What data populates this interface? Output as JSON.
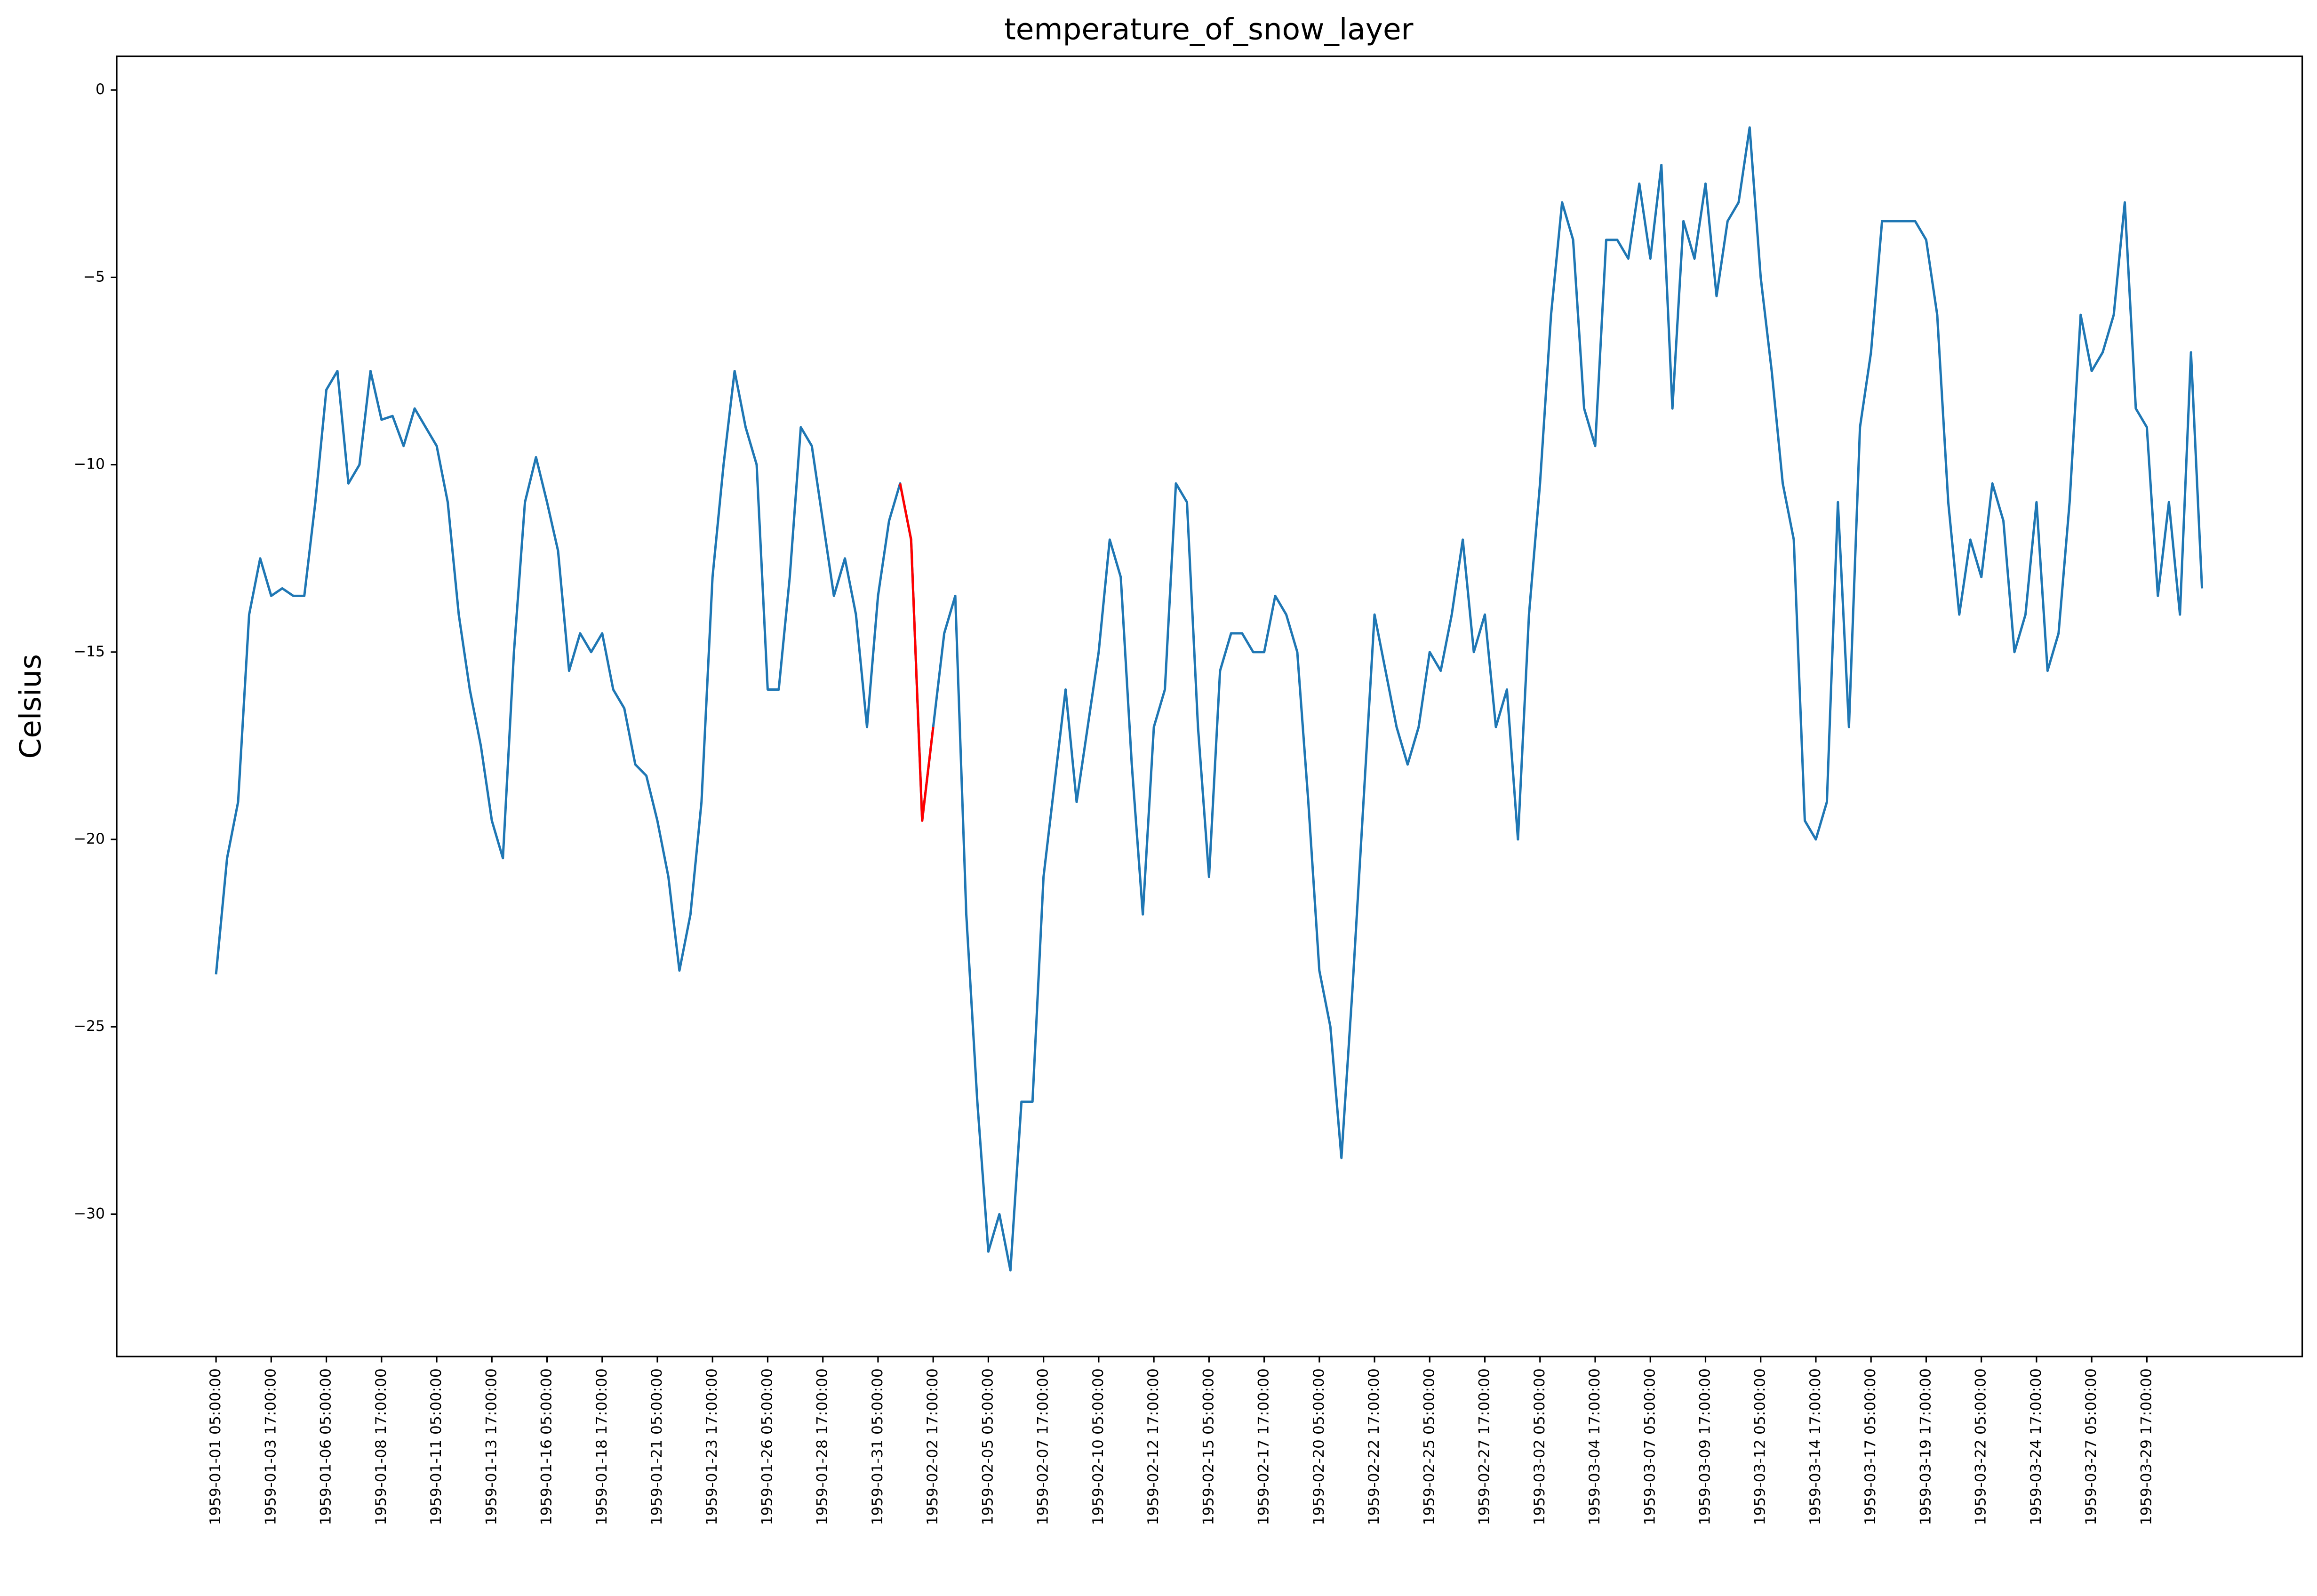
{
  "chart_data": {
    "type": "line",
    "title": "temperature_of_snow_layer",
    "y_label": "Celsius",
    "x": [
      "1959-01-01 05:00:00",
      "1959-01-01 17:00:00",
      "1959-01-02 05:00:00",
      "1959-01-02 17:00:00",
      "1959-01-03 05:00:00",
      "1959-01-03 17:00:00",
      "1959-01-04 05:00:00",
      "1959-01-04 17:00:00",
      "1959-01-05 05:00:00",
      "1959-01-05 17:00:00",
      "1959-01-06 05:00:00",
      "1959-01-06 17:00:00",
      "1959-01-07 05:00:00",
      "1959-01-07 17:00:00",
      "1959-01-08 05:00:00",
      "1959-01-08 17:00:00",
      "1959-01-09 05:00:00",
      "1959-01-09 17:00:00",
      "1959-01-10 05:00:00",
      "1959-01-10 17:00:00",
      "1959-01-11 05:00:00",
      "1959-01-11 17:00:00",
      "1959-01-12 05:00:00",
      "1959-01-12 17:00:00",
      "1959-01-13 05:00:00",
      "1959-01-13 17:00:00",
      "1959-01-14 05:00:00",
      "1959-01-14 17:00:00",
      "1959-01-15 05:00:00",
      "1959-01-15 17:00:00",
      "1959-01-16 05:00:00",
      "1959-01-16 17:00:00",
      "1959-01-17 05:00:00",
      "1959-01-17 17:00:00",
      "1959-01-18 05:00:00",
      "1959-01-18 17:00:00",
      "1959-01-19 05:00:00",
      "1959-01-19 17:00:00",
      "1959-01-20 05:00:00",
      "1959-01-20 17:00:00",
      "1959-01-21 05:00:00",
      "1959-01-21 17:00:00",
      "1959-01-22 05:00:00",
      "1959-01-22 17:00:00",
      "1959-01-23 05:00:00",
      "1959-01-23 17:00:00",
      "1959-01-24 05:00:00",
      "1959-01-24 17:00:00",
      "1959-01-25 05:00:00",
      "1959-01-25 17:00:00",
      "1959-01-26 05:00:00",
      "1959-01-26 17:00:00",
      "1959-01-27 05:00:00",
      "1959-01-27 17:00:00",
      "1959-01-28 05:00:00",
      "1959-01-28 17:00:00",
      "1959-01-29 05:00:00",
      "1959-01-29 17:00:00",
      "1959-01-30 05:00:00",
      "1959-01-30 17:00:00",
      "1959-01-31 05:00:00",
      "1959-01-31 17:00:00",
      "1959-02-01 05:00:00",
      "1959-02-01 17:00:00",
      "1959-02-02 05:00:00",
      "1959-02-02 17:00:00",
      "1959-02-03 05:00:00",
      "1959-02-03 17:00:00",
      "1959-02-04 05:00:00",
      "1959-02-04 17:00:00",
      "1959-02-05 05:00:00",
      "1959-02-05 17:00:00",
      "1959-02-06 05:00:00",
      "1959-02-06 17:00:00",
      "1959-02-07 05:00:00",
      "1959-02-07 17:00:00",
      "1959-02-08 05:00:00",
      "1959-02-08 17:00:00",
      "1959-02-09 05:00:00",
      "1959-02-09 17:00:00",
      "1959-02-10 05:00:00",
      "1959-02-10 17:00:00",
      "1959-02-11 05:00:00",
      "1959-02-11 17:00:00",
      "1959-02-12 05:00:00",
      "1959-02-12 17:00:00",
      "1959-02-13 05:00:00",
      "1959-02-13 17:00:00",
      "1959-02-14 05:00:00",
      "1959-02-14 17:00:00",
      "1959-02-15 05:00:00",
      "1959-02-15 17:00:00",
      "1959-02-16 05:00:00",
      "1959-02-16 17:00:00",
      "1959-02-17 05:00:00",
      "1959-02-17 17:00:00",
      "1959-02-18 05:00:00",
      "1959-02-18 17:00:00",
      "1959-02-19 05:00:00",
      "1959-02-19 17:00:00",
      "1959-02-20 05:00:00",
      "1959-02-20 17:00:00",
      "1959-02-21 05:00:00",
      "1959-02-21 17:00:00",
      "1959-02-22 05:00:00",
      "1959-02-22 17:00:00",
      "1959-02-23 05:00:00",
      "1959-02-23 17:00:00",
      "1959-02-24 05:00:00",
      "1959-02-24 17:00:00",
      "1959-02-25 05:00:00",
      "1959-02-25 17:00:00",
      "1959-02-26 05:00:00",
      "1959-02-26 17:00:00",
      "1959-02-27 05:00:00",
      "1959-02-27 17:00:00",
      "1959-02-28 05:00:00",
      "1959-02-28 17:00:00",
      "1959-03-01 05:00:00",
      "1959-03-01 17:00:00",
      "1959-03-02 05:00:00",
      "1959-03-02 17:00:00",
      "1959-03-03 05:00:00",
      "1959-03-03 17:00:00",
      "1959-03-04 05:00:00",
      "1959-03-04 17:00:00",
      "1959-03-05 05:00:00",
      "1959-03-05 17:00:00",
      "1959-03-06 05:00:00",
      "1959-03-06 17:00:00",
      "1959-03-07 05:00:00",
      "1959-03-07 17:00:00",
      "1959-03-08 05:00:00",
      "1959-03-08 17:00:00",
      "1959-03-09 05:00:00",
      "1959-03-09 17:00:00",
      "1959-03-10 05:00:00",
      "1959-03-10 17:00:00",
      "1959-03-11 05:00:00",
      "1959-03-11 17:00:00",
      "1959-03-12 05:00:00",
      "1959-03-12 17:00:00",
      "1959-03-13 05:00:00",
      "1959-03-13 17:00:00",
      "1959-03-14 05:00:00",
      "1959-03-14 17:00:00",
      "1959-03-15 05:00:00",
      "1959-03-15 17:00:00",
      "1959-03-16 05:00:00",
      "1959-03-16 17:00:00",
      "1959-03-17 05:00:00",
      "1959-03-17 17:00:00",
      "1959-03-18 05:00:00",
      "1959-03-18 17:00:00",
      "1959-03-19 05:00:00",
      "1959-03-19 17:00:00",
      "1959-03-20 05:00:00",
      "1959-03-20 17:00:00",
      "1959-03-21 05:00:00",
      "1959-03-21 17:00:00",
      "1959-03-22 05:00:00",
      "1959-03-22 17:00:00",
      "1959-03-23 05:00:00",
      "1959-03-23 17:00:00",
      "1959-03-24 05:00:00",
      "1959-03-24 17:00:00",
      "1959-03-25 05:00:00",
      "1959-03-25 17:00:00",
      "1959-03-26 05:00:00",
      "1959-03-26 17:00:00",
      "1959-03-27 05:00:00",
      "1959-03-27 17:00:00",
      "1959-03-28 05:00:00",
      "1959-03-28 17:00:00",
      "1959-03-29 05:00:00",
      "1959-03-29 17:00:00",
      "1959-03-30 05:00:00",
      "1959-03-30 17:00:00",
      "1959-03-31 05:00:00",
      "1959-03-31 17:00:00",
      "1959-04-01 05:00:00"
    ],
    "series": [
      {
        "color": "#1f77b4",
        "values": [
          -23.6,
          -20.5,
          -19,
          -14,
          -12.5,
          -13.5,
          -13.3,
          -13.5,
          -13.5,
          -11,
          -8,
          -7.5,
          -10.5,
          -10,
          -7.5,
          -8.8,
          -8.7,
          -9.5,
          -8.5,
          -9,
          -9.5,
          -11,
          -14,
          -16,
          -17.5,
          -19.5,
          -20.5,
          -15,
          -11,
          -9.8,
          -11,
          -12.3,
          -15.5,
          -14.5,
          -15,
          -14.5,
          -16,
          -16.5,
          -18,
          -18.3,
          -19.5,
          -21,
          -23.5,
          -22,
          -19,
          -13,
          -10,
          -7.5,
          -9,
          -10,
          -16,
          -16,
          -13,
          -9,
          -9.5,
          -11.5,
          -13.5,
          -12.5,
          -14,
          -17,
          -13.5,
          -11.5,
          -10.5,
          -12,
          -19.5,
          -17,
          -14.5,
          -13.5,
          -22,
          -27,
          -31,
          -30,
          -31.5,
          -27,
          -27,
          -21,
          -18.5,
          -16,
          -19,
          -17,
          -15,
          -12,
          -13,
          -18,
          -22,
          -17,
          -16,
          -10.5,
          -11,
          -17,
          -21,
          -15.5,
          -14.5,
          -14.5,
          -15,
          -15,
          -13.5,
          -14,
          -15,
          -19,
          -23.5,
          -25,
          -28.5,
          -24,
          -19,
          -14,
          -15.5,
          -17,
          -18,
          -17,
          -15,
          -15.5,
          -14,
          -12,
          -15,
          -14,
          -17,
          -16,
          -20,
          -14,
          -10.5,
          -6,
          -3,
          -4,
          -8.5,
          -9.5,
          -4,
          -4,
          -4.5,
          -2.5,
          -4.5,
          -2,
          -8.5,
          -3.5,
          -4.5,
          -2.5,
          -5.5,
          -3.5,
          -3,
          -1,
          -5,
          -7.5,
          -10.5,
          -12,
          -19.5,
          -20,
          -19,
          -11,
          -17,
          -9,
          -7,
          -3.5,
          -3.5,
          -3.5,
          -3.5,
          -4,
          -6,
          -11,
          -14,
          -12,
          -13,
          -10.5,
          -11.5,
          -15,
          -14,
          -11,
          -15.5,
          -14.5,
          -11,
          -6,
          -7.5,
          -7,
          -6,
          -3,
          -8.5,
          -9,
          -13.5,
          -11,
          -14,
          -7,
          -13.3
        ]
      },
      {
        "color": "#ff0000",
        "x": [
          "1959-02-01 05:00:00",
          "1959-02-01 17:00:00",
          "1959-02-02 05:00:00",
          "1959-02-02 17:00:00"
        ],
        "values": [
          -10.5,
          -12,
          -19.5,
          -17
        ]
      }
    ],
    "xlim": [
      "1958-12-27 17:00:00",
      "1959-04-05 18:00:00"
    ],
    "xticks": [
      "1959-01-01 05:00:00",
      "1959-01-03 17:00:00",
      "1959-01-06 05:00:00",
      "1959-01-08 17:00:00",
      "1959-01-11 05:00:00",
      "1959-01-13 17:00:00",
      "1959-01-16 05:00:00",
      "1959-01-18 17:00:00",
      "1959-01-21 05:00:00",
      "1959-01-23 17:00:00",
      "1959-01-26 05:00:00",
      "1959-01-28 17:00:00",
      "1959-01-31 05:00:00",
      "1959-02-02 17:00:00",
      "1959-02-05 05:00:00",
      "1959-02-07 17:00:00",
      "1959-02-10 05:00:00",
      "1959-02-12 17:00:00",
      "1959-02-15 05:00:00",
      "1959-02-17 17:00:00",
      "1959-02-20 05:00:00",
      "1959-02-22 17:00:00",
      "1959-02-25 05:00:00",
      "1959-02-27 17:00:00",
      "1959-03-02 05:00:00",
      "1959-03-04 17:00:00",
      "1959-03-07 05:00:00",
      "1959-03-09 17:00:00",
      "1959-03-12 05:00:00",
      "1959-03-14 17:00:00",
      "1959-03-17 05:00:00",
      "1959-03-19 17:00:00",
      "1959-03-22 05:00:00",
      "1959-03-24 17:00:00",
      "1959-03-27 05:00:00",
      "1959-03-29 17:00:00"
    ],
    "ylim": [
      -33.8,
      0.9
    ],
    "yticks": [
      {
        "value": 0,
        "label": "0"
      },
      {
        "value": -5,
        "label": "−5"
      },
      {
        "value": -10,
        "label": "−10"
      },
      {
        "value": -15,
        "label": "−15"
      },
      {
        "value": -20,
        "label": "−20"
      },
      {
        "value": -25,
        "label": "−25"
      },
      {
        "value": -30,
        "label": "−30"
      }
    ],
    "grid": false
  }
}
